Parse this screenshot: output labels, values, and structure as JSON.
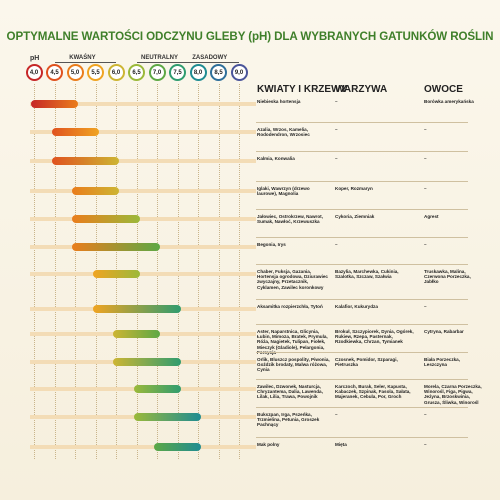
{
  "title": "OPTYMALNE WARTOŚCI ODCZYNU GLEBY (pH) DLA WYBRANYCH GATUNKÓW ROŚLIN",
  "ph_label": "pH",
  "zones": [
    {
      "label": "KWAŚNY",
      "from": 4.5,
      "to": 6.0
    },
    {
      "label": "NEUTRALNY",
      "from": 6.5,
      "to": 7.5
    },
    {
      "label": "ZASADOWY",
      "from": 7.5,
      "to": 9.0
    }
  ],
  "colors": {
    "title": "#3f7f2a",
    "scale": [
      "#c62828",
      "#e0521f",
      "#ea7d1c",
      "#f0a422",
      "#cdb533",
      "#9bb93a",
      "#5da845",
      "#2f9c6f",
      "#1f8c92",
      "#2e6f9a",
      "#4a559a",
      "#5f3f8f",
      "#6b2c82"
    ]
  },
  "chart_data": {
    "type": "bar",
    "title": "OPTYMALNE WARTOŚCI ODCZYNU GLEBY (pH) DLA WYBRANYCH GATUNKÓW ROŚLIN",
    "x_ticks": [
      "4,0",
      "4,5",
      "5,0",
      "5,5",
      "6,0",
      "6,5",
      "7,0",
      "7,5",
      "8,0",
      "8,5",
      "9,0"
    ],
    "xlim": [
      4.0,
      9.0
    ],
    "columns": [
      "KWIATY I KRZEWY",
      "WARZYWA",
      "OWOCE"
    ],
    "rows": [
      {
        "range": [
          4.0,
          5.0
        ],
        "kwiaty": "Niebieska hortensja",
        "warzywa": "–",
        "owoce": "Borówka amerykańska"
      },
      {
        "range": [
          4.5,
          5.5
        ],
        "kwiaty": "Azalia, Wrzos, Kamelia, Rododendron, Wrzosiec",
        "warzywa": "–",
        "owoce": "–"
      },
      {
        "range": [
          4.5,
          6.0
        ],
        "kwiaty": "Kalmia, Konwalia",
        "warzywa": "–",
        "owoce": "–"
      },
      {
        "range": [
          5.0,
          6.0
        ],
        "kwiaty": "Iglaki, Wawrzyn (drzewo laurowe), Magnolia",
        "warzywa": "Koper, Rozmaryn",
        "owoce": "–"
      },
      {
        "range": [
          5.0,
          6.5
        ],
        "kwiaty": "Jałowiec, Ostrokrzew, Nawrot, Sumak, Nawłoć, Krzewuszka",
        "warzywa": "Cykoria, Ziemniak",
        "owoce": "Agrest"
      },
      {
        "range": [
          5.0,
          7.0
        ],
        "kwiaty": "Begonia, Irys",
        "warzywa": "–",
        "owoce": "–"
      },
      {
        "range": [
          5.5,
          6.5
        ],
        "kwiaty": "Chaber, Fuksja, Gazania, Hortensja ogrodowa, Dziurawiec zwyczajny, Przetacznik, Cyklamen, Zawilec koronkowy",
        "warzywa": "Bazylia, Marchewka, Cukinia, Szalotka, Szczaw, Szałwia",
        "owoce": "Truskawka, Malina, Czerwona Porzeczka, Jabłko"
      },
      {
        "range": [
          5.5,
          7.5
        ],
        "kwiaty": "Aksamitka rozpierzchła, Tytoń",
        "warzywa": "Kalafior, Kukurydza",
        "owoce": "–"
      },
      {
        "range": [
          6.0,
          7.0
        ],
        "kwiaty": "Aster, Naparstnica, Glicynia, Łubin, Mimoza, Bratek, Prymula, Róża, Nagietek, Tulipan, Fiołek, Mieczyk (Gladiole), Pelargonia, Forsycja",
        "warzywa": "Brokuł, Szczypiorek, Dynia, Ogórek, Rukiew, Rzepa, Pasternak, Rzodkiewka, Chrzan, Tymianek",
        "owoce": "Cytryna, Rabarbar"
      },
      {
        "range": [
          6.0,
          7.5
        ],
        "kwiaty": "Orlik, Bluszcz pospolity, Piwonia, Goździk brodaty, Malwa różowa, Cynia",
        "warzywa": "Czosnek, Pomidor, Szparagi, Pietruszka",
        "owoce": "Biała Porzeczka, Leszczyna"
      },
      {
        "range": [
          6.5,
          7.5
        ],
        "kwiaty": "Zawilec, Dzwonek, Nasturcja, Chryzantema, Dalia, Lawenda, Lilak, Lilia, Trawa, Powojnik",
        "warzywa": "Karczoch, Burak, Seler, Kapusta, Kabaczek, Szpinak, Fasola, Sałata, Majeranek, Cebula, Por, Groch",
        "owoce": "Morela, Czarna Porzeczka, Winorośl, Figa, Pigwa, Jeżyna, Brzoskwinia, Grusza, Śliwka, Winorośl"
      },
      {
        "range": [
          6.5,
          8.0
        ],
        "kwiaty": "Bukszpan, Irga, Pszeńka, Trzmielina, Petunia, Groszek Pachnący",
        "warzywa": "–",
        "owoce": "–"
      },
      {
        "range": [
          7.0,
          8.0
        ],
        "kwiaty": "Mak polny",
        "warzywa": "Mięta",
        "owoce": "–"
      }
    ]
  }
}
